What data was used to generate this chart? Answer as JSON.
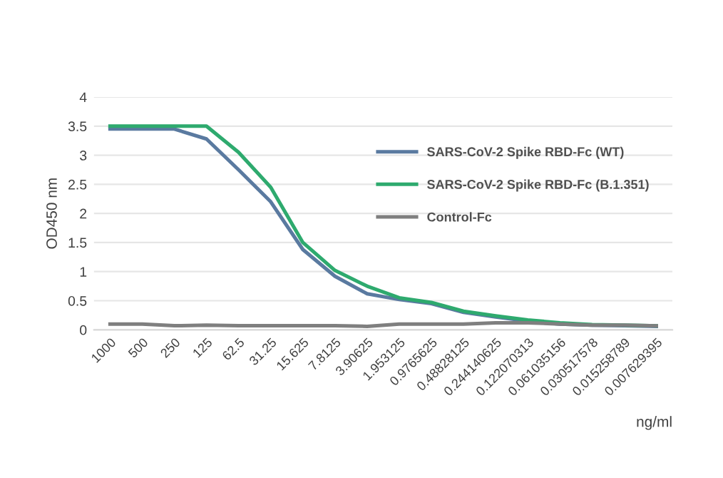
{
  "chart_data": {
    "type": "line",
    "categories": [
      "1000",
      "500",
      "250",
      "125",
      "62.5",
      "31.25",
      "15.625",
      "7.8125",
      "3.90625",
      "1.953125",
      "0.9765625",
      "0.48828125",
      "0.244140625",
      "0.122070313",
      "0.061035156",
      "0.030517578",
      "0.015258789",
      "0.007629395"
    ],
    "series": [
      {
        "name": "SARS-CoV-2 Spike RBD-Fc (WT)",
        "color": "#5a7aa0",
        "values": [
          3.45,
          3.45,
          3.45,
          3.28,
          2.75,
          2.2,
          1.38,
          0.92,
          0.62,
          0.52,
          0.45,
          0.3,
          0.22,
          0.15,
          0.1,
          0.08,
          0.07,
          0.06
        ]
      },
      {
        "name": "SARS-CoV-2 Spike RBD-Fc (B.1.351)",
        "color": "#2eaa6e",
        "values": [
          3.5,
          3.5,
          3.5,
          3.5,
          3.05,
          2.45,
          1.5,
          1.02,
          0.75,
          0.55,
          0.47,
          0.32,
          0.24,
          0.17,
          0.12,
          0.09,
          0.08,
          0.07
        ]
      },
      {
        "name": "Control-Fc",
        "color": "#7f7f7f",
        "values": [
          0.1,
          0.1,
          0.07,
          0.08,
          0.07,
          0.07,
          0.07,
          0.07,
          0.06,
          0.1,
          0.1,
          0.1,
          0.12,
          0.12,
          0.1,
          0.08,
          0.08,
          0.07
        ]
      }
    ],
    "xlabel": "ng/ml",
    "ylabel": "OD450 nm",
    "ylim": [
      0,
      4
    ],
    "yticks": [
      0,
      0.5,
      1,
      1.5,
      2,
      2.5,
      3,
      3.5,
      4
    ],
    "grid": "y",
    "legend": "right",
    "marker": "none",
    "line_style": "solid"
  }
}
